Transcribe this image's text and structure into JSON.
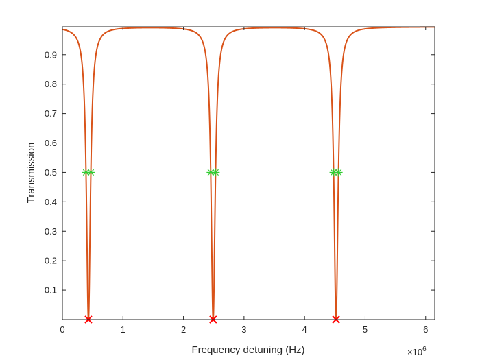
{
  "chart_data": {
    "type": "line",
    "title": "",
    "xlabel": "Frequency detuning (Hz)",
    "ylabel": "Transmission",
    "x_exponent_label": "×10",
    "x_exponent_power": "6",
    "x_scale": 1000000,
    "xlim": [
      0,
      6150000
    ],
    "ylim": [
      0,
      0.995
    ],
    "x_ticks": [
      0,
      1,
      2,
      3,
      4,
      5,
      6
    ],
    "x_tick_labels": [
      "0",
      "1",
      "2",
      "3",
      "4",
      "5",
      "6"
    ],
    "y_ticks": [
      0.1,
      0.2,
      0.3,
      0.4,
      0.5,
      0.6,
      0.7,
      0.8,
      0.9
    ],
    "y_tick_labels": [
      "0.1",
      "0.2",
      "0.3",
      "0.4",
      "0.5",
      "0.6",
      "0.7",
      "0.8",
      "0.9"
    ],
    "grid": false,
    "series": [
      {
        "kind": "curve",
        "color": "#D95319",
        "baseline": 0.995,
        "resonances": [
          {
            "center": 430000,
            "fwhm": 80000
          },
          {
            "center": 2490000,
            "fwhm": 80000
          },
          {
            "center": 4520000,
            "fwhm": 80000
          }
        ]
      },
      {
        "kind": "markers",
        "marker": "x",
        "color": "#FF0000",
        "points": [
          {
            "x": 430000,
            "y": 0.0
          },
          {
            "x": 2490000,
            "y": 0.0
          },
          {
            "x": 4520000,
            "y": 0.0
          }
        ]
      },
      {
        "kind": "markers",
        "marker": "asterisk",
        "color": "#33CC33",
        "points": [
          {
            "x": 390000,
            "y": 0.5
          },
          {
            "x": 470000,
            "y": 0.5
          },
          {
            "x": 2450000,
            "y": 0.5
          },
          {
            "x": 2530000,
            "y": 0.5
          },
          {
            "x": 4480000,
            "y": 0.5
          },
          {
            "x": 4560000,
            "y": 0.5
          }
        ]
      }
    ]
  }
}
